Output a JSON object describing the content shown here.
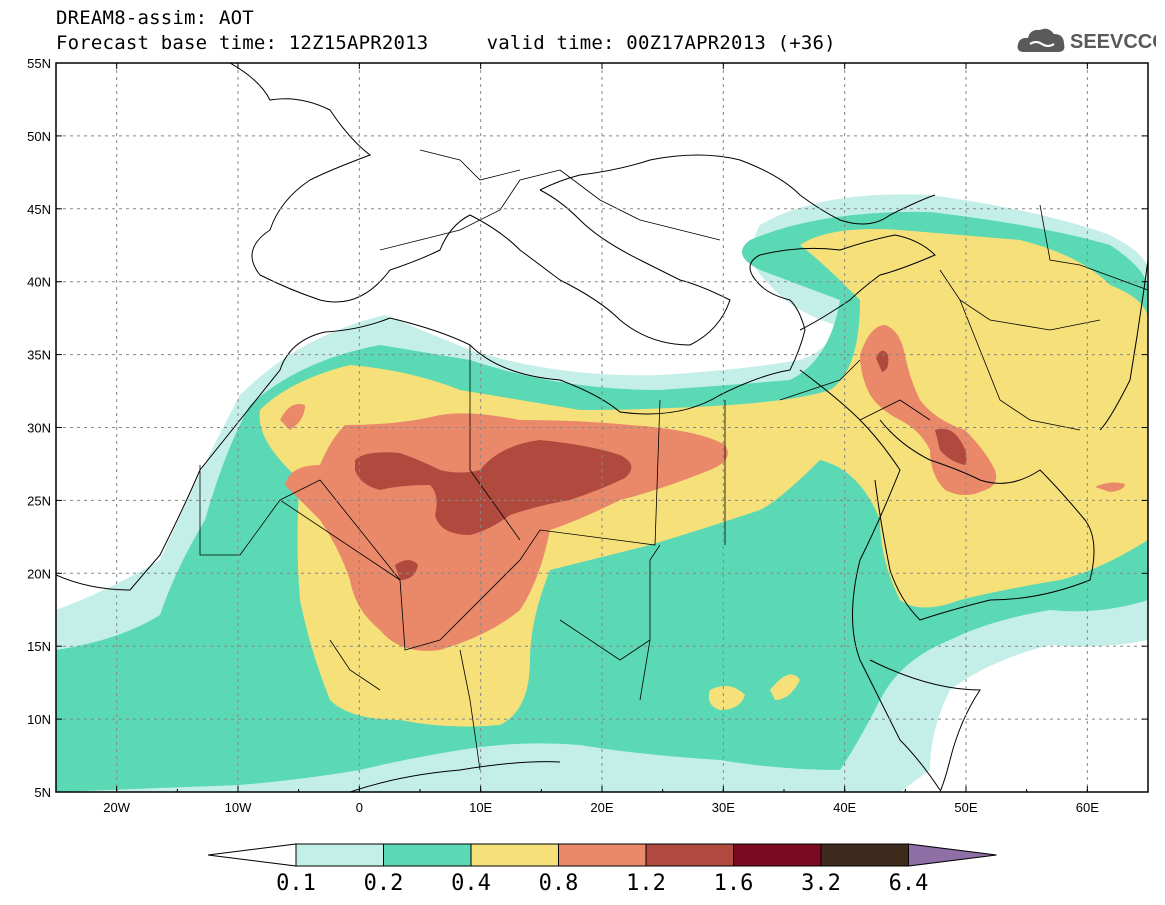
{
  "header": {
    "title_line1": "DREAM8-assim: AOT",
    "title_line2": "Forecast base time: 12Z15APR2013     valid time: 00Z17APR2013 (+36)"
  },
  "logo": {
    "text": "SEEVCCC",
    "icon": "cloud-icon",
    "color": "#5a5a5a"
  },
  "map": {
    "variable": "AOT",
    "lon_range": [
      -25,
      65
    ],
    "lat_range": [
      5,
      55
    ],
    "lon_labels": [
      "20W",
      "10W",
      "0",
      "10E",
      "20E",
      "30E",
      "40E",
      "50E",
      "60E"
    ],
    "lat_labels": [
      "5N",
      "10N",
      "15N",
      "20N",
      "25N",
      "30N",
      "35N",
      "40N",
      "45N",
      "50N",
      "55N"
    ],
    "gridlines": "dashed",
    "ocean_color": "#ffffff"
  },
  "colorbar": {
    "bounds": [
      "0.1",
      "0.2",
      "0.4",
      "0.8",
      "1.2",
      "1.6",
      "3.2",
      "6.4"
    ],
    "colors": [
      "#c4efe8",
      "#5ad9b4",
      "#f5e07a",
      "#e9896a",
      "#b04a3e",
      "#7a0a22",
      "#3d2a1c",
      "#8e6fa6"
    ],
    "extend": "both",
    "low_color": "#ffffff"
  }
}
